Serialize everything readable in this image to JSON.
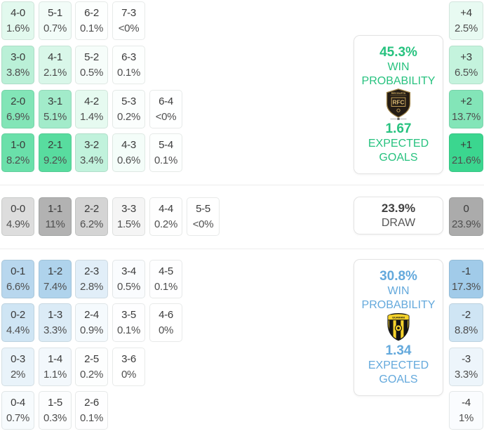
{
  "chart_data": {
    "type": "heatmap",
    "description": "Correct score probability matrix with win probability, expected goals and goal-difference distribution",
    "grid_color_scale_max": 12,
    "diff_color_scale_max": 24,
    "sections": [
      {
        "id": "home",
        "accent": "#25d182",
        "text_color": "#27c27f",
        "panel": {
          "win_pct": "45.3%",
          "win_label": "WIN PROBABILITY",
          "xg": "1.67",
          "xg_label": "EXPECTED GOALS",
          "crest_icon": "recoleta-crest"
        },
        "grid": [
          [
            {
              "score": "4-0",
              "pct": "1.6%",
              "value": 1.6
            },
            {
              "score": "5-1",
              "pct": "0.7%",
              "value": 0.7
            },
            {
              "score": "6-2",
              "pct": "0.1%",
              "value": 0.1
            },
            {
              "score": "7-3",
              "pct": "<0%",
              "value": 0.04
            }
          ],
          [
            {
              "score": "3-0",
              "pct": "3.8%",
              "value": 3.8
            },
            {
              "score": "4-1",
              "pct": "2.1%",
              "value": 2.1
            },
            {
              "score": "5-2",
              "pct": "0.5%",
              "value": 0.5
            },
            {
              "score": "6-3",
              "pct": "0.1%",
              "value": 0.1
            }
          ],
          [
            {
              "score": "2-0",
              "pct": "6.9%",
              "value": 6.9
            },
            {
              "score": "3-1",
              "pct": "5.1%",
              "value": 5.1
            },
            {
              "score": "4-2",
              "pct": "1.4%",
              "value": 1.4
            },
            {
              "score": "5-3",
              "pct": "0.2%",
              "value": 0.2
            },
            {
              "score": "6-4",
              "pct": "<0%",
              "value": 0.04
            }
          ],
          [
            {
              "score": "1-0",
              "pct": "8.2%",
              "value": 8.2
            },
            {
              "score": "2-1",
              "pct": "9.2%",
              "value": 9.2
            },
            {
              "score": "3-2",
              "pct": "3.4%",
              "value": 3.4
            },
            {
              "score": "4-3",
              "pct": "0.6%",
              "value": 0.6
            },
            {
              "score": "5-4",
              "pct": "0.1%",
              "value": 0.1
            }
          ]
        ],
        "diffs": [
          {
            "diff": "+4",
            "pct": "2.5%",
            "value": 2.5
          },
          {
            "diff": "+3",
            "pct": "6.5%",
            "value": 6.5
          },
          {
            "diff": "+2",
            "pct": "13.7%",
            "value": 13.7
          },
          {
            "diff": "+1",
            "pct": "21.6%",
            "value": 21.6
          }
        ]
      },
      {
        "id": "draw",
        "accent": "#ababab",
        "text_color": "#4a4a4a",
        "panel": {
          "pct": "23.9%",
          "label": "DRAW"
        },
        "grid": [
          [
            {
              "score": "0-0",
              "pct": "4.9%",
              "value": 4.9
            },
            {
              "score": "1-1",
              "pct": "11%",
              "value": 11
            },
            {
              "score": "2-2",
              "pct": "6.2%",
              "value": 6.2
            },
            {
              "score": "3-3",
              "pct": "1.5%",
              "value": 1.5
            },
            {
              "score": "4-4",
              "pct": "0.2%",
              "value": 0.2
            },
            {
              "score": "5-5",
              "pct": "<0%",
              "value": 0.04
            }
          ]
        ],
        "diffs": [
          {
            "diff": "0",
            "pct": "23.9%",
            "value": 23.9
          }
        ]
      },
      {
        "id": "away",
        "accent": "#7db7e0",
        "text_color": "#64a9dc",
        "panel": {
          "win_pct": "30.8%",
          "win_label": "WIN PROBABILITY",
          "xg": "1.34",
          "xg_label": "EXPECTED GOALS",
          "crest_icon": "guarani-crest"
        },
        "grid": [
          [
            {
              "score": "0-1",
              "pct": "6.6%",
              "value": 6.6
            },
            {
              "score": "1-2",
              "pct": "7.4%",
              "value": 7.4
            },
            {
              "score": "2-3",
              "pct": "2.8%",
              "value": 2.8
            },
            {
              "score": "3-4",
              "pct": "0.5%",
              "value": 0.5
            },
            {
              "score": "4-5",
              "pct": "0.1%",
              "value": 0.1
            }
          ],
          [
            {
              "score": "0-2",
              "pct": "4.4%",
              "value": 4.4
            },
            {
              "score": "1-3",
              "pct": "3.3%",
              "value": 3.3
            },
            {
              "score": "2-4",
              "pct": "0.9%",
              "value": 0.9
            },
            {
              "score": "3-5",
              "pct": "0.1%",
              "value": 0.1
            },
            {
              "score": "4-6",
              "pct": "0%",
              "value": 0.02
            }
          ],
          [
            {
              "score": "0-3",
              "pct": "2%",
              "value": 2
            },
            {
              "score": "1-4",
              "pct": "1.1%",
              "value": 1.1
            },
            {
              "score": "2-5",
              "pct": "0.2%",
              "value": 0.2
            },
            {
              "score": "3-6",
              "pct": "0%",
              "value": 0.02
            }
          ],
          [
            {
              "score": "0-4",
              "pct": "0.7%",
              "value": 0.7
            },
            {
              "score": "1-5",
              "pct": "0.3%",
              "value": 0.3
            },
            {
              "score": "2-6",
              "pct": "0.1%",
              "value": 0.1
            }
          ]
        ],
        "diffs": [
          {
            "diff": "-1",
            "pct": "17.3%",
            "value": 17.3
          },
          {
            "diff": "-2",
            "pct": "8.8%",
            "value": 8.8
          },
          {
            "diff": "-3",
            "pct": "3.3%",
            "value": 3.3
          },
          {
            "diff": "-4",
            "pct": "1%",
            "value": 1
          }
        ]
      }
    ]
  }
}
